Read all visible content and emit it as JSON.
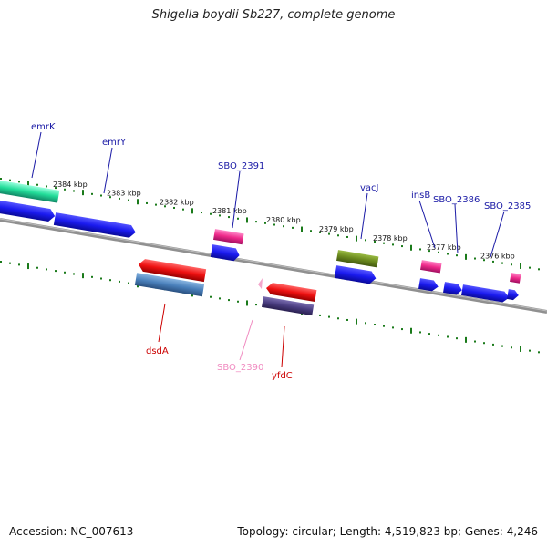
{
  "title": "Shigella boydii Sb227, complete genome",
  "footer": {
    "accession": "Accession: NC_007613",
    "summary": "Topology: circular; Length: 4,519,823 bp; Genes: 4,246"
  },
  "scale_labels": [
    "2384 kbp",
    "2383 kbp",
    "2382 kbp",
    "2381 kbp",
    "2380 kbp",
    "2379 kbp",
    "2378 kbp",
    "2377 kbp",
    "2376 kbp"
  ],
  "gene_labels": [
    {
      "name": "emrK",
      "color": "#1a1aa6"
    },
    {
      "name": "emrY",
      "color": "#1a1aa6"
    },
    {
      "name": "SBO_2391",
      "color": "#1a1aa6"
    },
    {
      "name": "vacJ",
      "color": "#1a1aa6"
    },
    {
      "name": "insB",
      "color": "#1a1aa6"
    },
    {
      "name": "SBO_2386",
      "color": "#1a1aa6"
    },
    {
      "name": "SBO_2385",
      "color": "#1a1aa6"
    },
    {
      "name": "dsdA",
      "color": "#cc0000"
    },
    {
      "name": "SBO_2390",
      "color": "#f08ac0"
    },
    {
      "name": "yfdC",
      "color": "#cc0000"
    }
  ],
  "colors": {
    "cds_blue": "#1a1aee",
    "cds_red": "#ee1111",
    "pink": "#ee2a8a",
    "teal": "#22dd99",
    "olive": "#6b8a1e",
    "steel": "#4a80bb",
    "purple": "#4a3d80",
    "tick_green": "#1a7a1a",
    "backbone": "#888888"
  }
}
